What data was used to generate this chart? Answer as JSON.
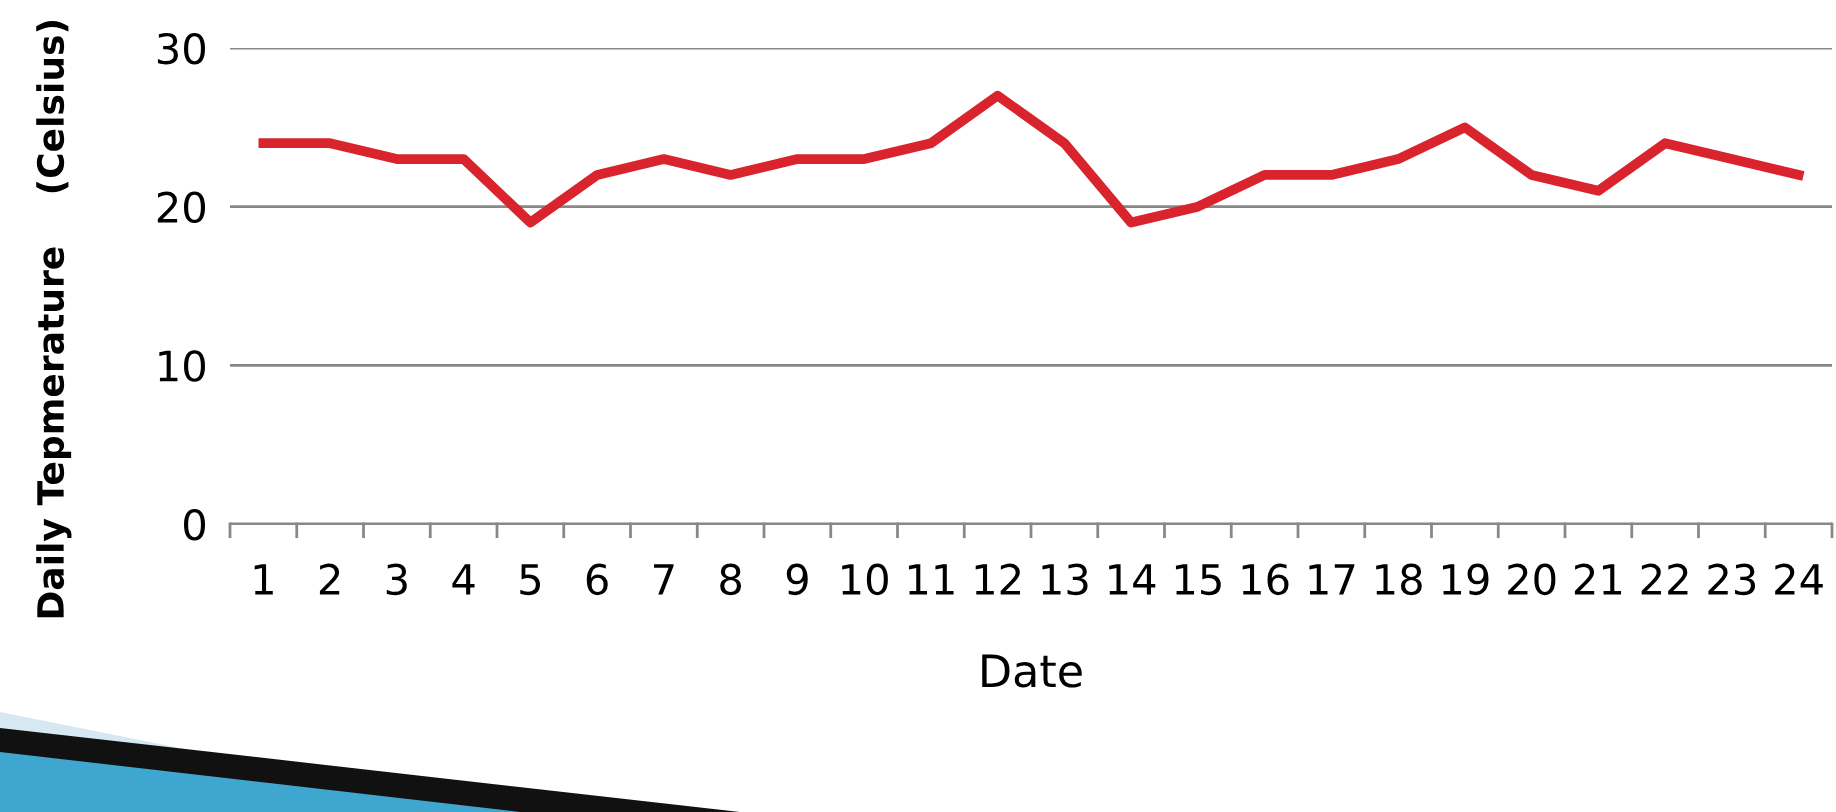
{
  "chart_data": {
    "type": "line",
    "xlabel": "Date",
    "ylabel": "Daily Tepmerature    (Celsius)",
    "categories": [
      "1",
      "2",
      "3",
      "4",
      "5",
      "6",
      "7",
      "8",
      "9",
      "10",
      "11",
      "12",
      "13",
      "14",
      "15",
      "16",
      "17",
      "18",
      "19",
      "20",
      "21",
      "22",
      "23",
      "24"
    ],
    "series": [
      {
        "color": "#d9232d",
        "values": [
          24,
          24,
          23,
          23,
          19,
          22,
          23,
          22,
          23,
          23,
          24,
          27,
          24,
          19,
          20,
          22,
          22,
          23,
          25,
          22,
          21,
          24,
          23,
          22
        ]
      }
    ],
    "ylim": [
      0,
      30
    ],
    "yticks": [
      0,
      10,
      20,
      30
    ],
    "grid": "y",
    "legend": false,
    "marker": "none",
    "line_style": "solid"
  }
}
